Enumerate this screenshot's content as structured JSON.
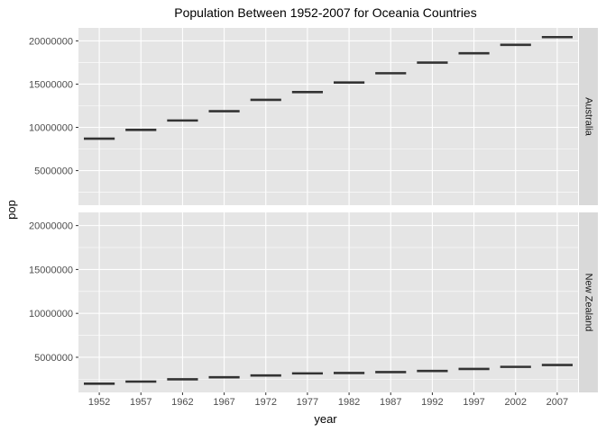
{
  "chart_data": {
    "type": "boxplot",
    "title": "Population Between 1952-2007 for Oceania Countries",
    "xlabel": "year",
    "ylabel": "pop",
    "x": [
      1952,
      1957,
      1962,
      1967,
      1972,
      1977,
      1982,
      1987,
      1992,
      1997,
      2002,
      2007
    ],
    "ylim": [
      1000000,
      21500000
    ],
    "yticks": [
      5000000,
      10000000,
      15000000,
      20000000
    ],
    "grid": true,
    "facets": [
      {
        "name": "Australia",
        "values": [
          8691212,
          9712569,
          10794968,
          11872264,
          13177000,
          14074100,
          15184200,
          16257249,
          17481977,
          18565243,
          19546792,
          20434176
        ]
      },
      {
        "name": "New Zealand",
        "values": [
          1994794,
          2229407,
          2488550,
          2728150,
          2929100,
          3164900,
          3210650,
          3317166,
          3437674,
          3676187,
          3908037,
          4115771
        ]
      }
    ],
    "colors": {
      "panel_bg": "#e5e5e5",
      "grid": "#ffffff",
      "strip_bg": "#d9d9d9",
      "mark": "#333333"
    }
  }
}
